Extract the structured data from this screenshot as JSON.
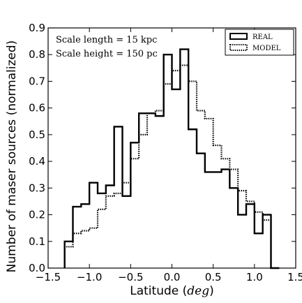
{
  "chart_data": {
    "type": "histogram-step",
    "xlabel_prefix": "Latitude (",
    "xlabel_var": "deg",
    "xlabel_suffix": ")",
    "ylabel": "Number of maser sources (normalized)",
    "xlim": [
      -1.5,
      1.5
    ],
    "ylim": [
      0.0,
      0.9
    ],
    "xticks": [
      -1.5,
      -1.0,
      -0.5,
      0.0,
      0.5,
      1.0,
      1.5
    ],
    "xtick_labels": [
      "−1.5",
      "−1.0",
      "−0.5",
      "0.0",
      "0.5",
      "1.0",
      "1.5"
    ],
    "yticks": [
      0.0,
      0.1,
      0.2,
      0.3,
      0.4,
      0.5,
      0.6,
      0.7,
      0.8,
      0.9
    ],
    "ytick_labels": [
      "0.0",
      "0.1",
      "0.2",
      "0.3",
      "0.4",
      "0.5",
      "0.6",
      "0.7",
      "0.8",
      "0.9"
    ],
    "bin_edges": [
      -1.3,
      -1.2,
      -1.1,
      -1.0,
      -0.9,
      -0.8,
      -0.7,
      -0.6,
      -0.5,
      -0.4,
      -0.3,
      -0.2,
      -0.1,
      0.0,
      0.1,
      0.2,
      0.3,
      0.4,
      0.5,
      0.6,
      0.7,
      0.8,
      0.9,
      1.0,
      1.1,
      1.2,
      1.3
    ],
    "series": [
      {
        "name": "REAL",
        "style": "solid",
        "values": [
          0.1,
          0.23,
          0.24,
          0.32,
          0.28,
          0.31,
          0.53,
          0.27,
          0.47,
          0.58,
          0.58,
          0.57,
          0.8,
          0.67,
          0.82,
          0.52,
          0.43,
          0.36,
          0.36,
          0.37,
          0.3,
          0.2,
          0.24,
          0.13,
          0.2,
          0.0
        ]
      },
      {
        "name": "MODEL",
        "style": "dotted",
        "values": [
          0.08,
          0.13,
          0.14,
          0.15,
          0.22,
          0.27,
          0.28,
          0.32,
          0.41,
          0.5,
          0.58,
          0.59,
          0.69,
          0.74,
          0.76,
          0.7,
          0.59,
          0.56,
          0.46,
          0.41,
          0.37,
          0.29,
          0.25,
          0.21,
          0.18,
          0.0
        ]
      }
    ],
    "annotations": [
      "Scale length =  15 kpc",
      "Scale height = 150 pc"
    ],
    "legend_position": "top-right",
    "grid": false
  }
}
